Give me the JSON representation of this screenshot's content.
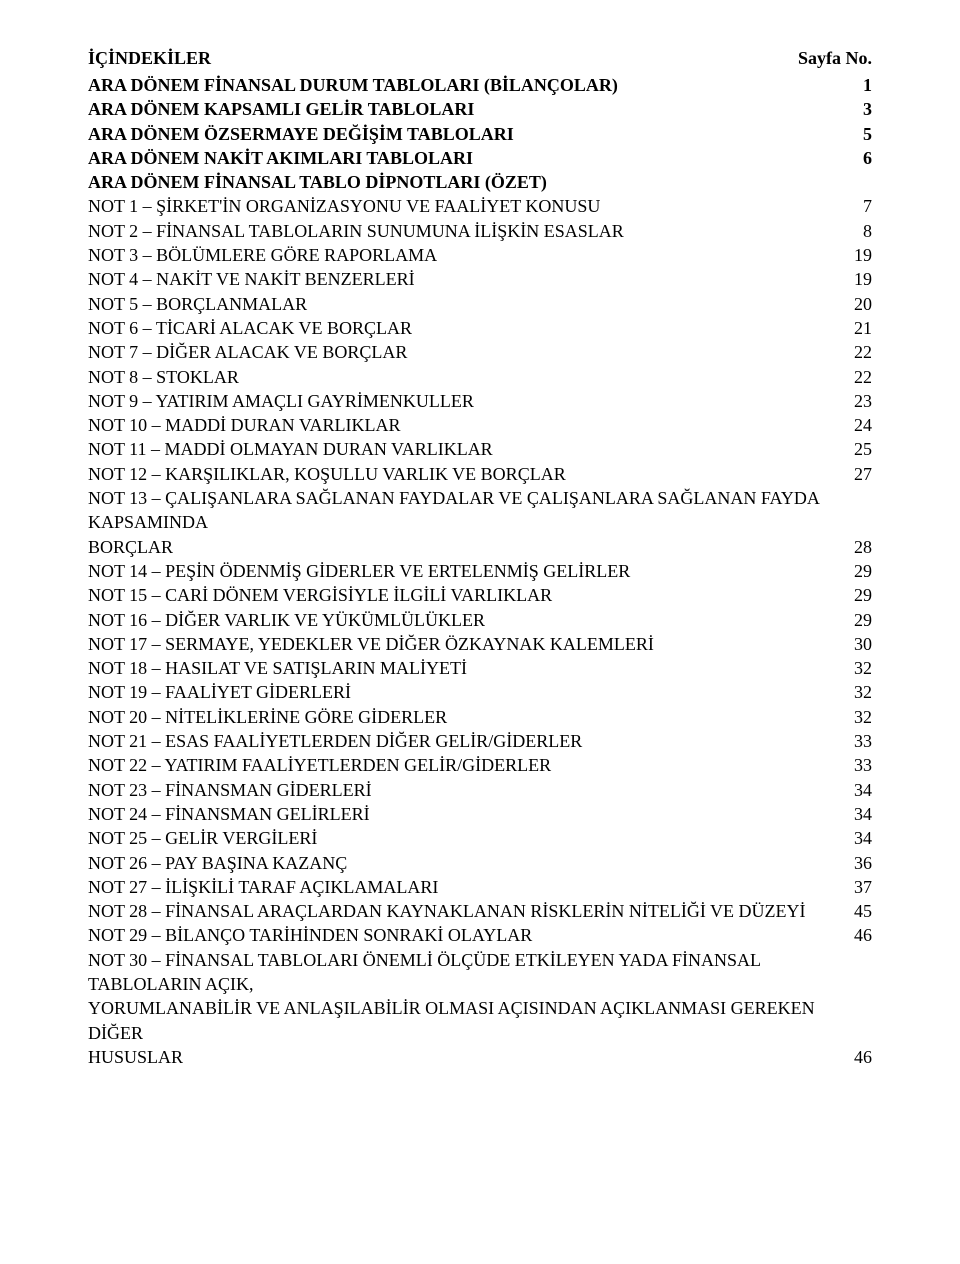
{
  "header": {
    "left": "İÇİNDEKİLER",
    "right": "Sayfa No."
  },
  "rows": [
    {
      "label": "ARA DÖNEM FİNANSAL DURUM TABLOLARI (BİLANÇOLAR)",
      "page": "1",
      "bold": true
    },
    {
      "label": "ARA DÖNEM KAPSAMLI GELİR TABLOLARI",
      "page": "3",
      "bold": true
    },
    {
      "label": "ARA DÖNEM ÖZSERMAYE DEĞİŞİM TABLOLARI",
      "page": "5",
      "bold": true
    },
    {
      "label": "ARA DÖNEM NAKİT AKIMLARI TABLOLARI",
      "page": "6",
      "bold": true
    },
    {
      "label": "ARA DÖNEM FİNANSAL TABLO DİPNOTLARI (ÖZET)",
      "page": "",
      "bold": true
    },
    {
      "label": "NOT 1 – ŞİRKET'İN ORGANİZASYONU VE FAALİYET KONUSU",
      "page": "7",
      "bold": false
    },
    {
      "label": "NOT 2 – FİNANSAL TABLOLARIN SUNUMUNA İLİŞKİN ESASLAR",
      "page": "8",
      "bold": false
    },
    {
      "label": "NOT 3 – BÖLÜMLERE GÖRE RAPORLAMA",
      "page": "19",
      "bold": false
    },
    {
      "label": "NOT 4 – NAKİT VE NAKİT BENZERLERİ",
      "page": "19",
      "bold": false
    },
    {
      "label": "NOT 5 – BORÇLANMALAR",
      "page": "20",
      "bold": false
    },
    {
      "label": "NOT 6 – TİCARİ ALACAK VE BORÇLAR",
      "page": "21",
      "bold": false
    },
    {
      "label": "NOT 7 – DİĞER ALACAK VE BORÇLAR",
      "page": "22",
      "bold": false
    },
    {
      "label": "NOT 8 – STOKLAR",
      "page": "22",
      "bold": false
    },
    {
      "label": "NOT 9 – YATIRIM AMAÇLI GAYRİMENKULLER",
      "page": "23",
      "bold": false
    },
    {
      "label": "NOT 10 – MADDİ DURAN VARLIKLAR",
      "page": "24",
      "bold": false
    },
    {
      "label": "NOT 11 – MADDİ OLMAYAN DURAN VARLIKLAR",
      "page": "25",
      "bold": false
    },
    {
      "label": "NOT 12 – KARŞILIKLAR, KOŞULLU VARLIK VE BORÇLAR",
      "page": "27",
      "bold": false
    },
    {
      "label": "NOT 13 – ÇALIŞANLARA SAĞLANAN FAYDALAR VE ÇALIŞANLARA SAĞLANAN FAYDA KAPSAMINDA BORÇLAR",
      "page": "28",
      "bold": false,
      "wrap": [
        "NOT 13 – ÇALIŞANLARA SAĞLANAN FAYDALAR VE ÇALIŞANLARA SAĞLANAN FAYDA KAPSAMINDA",
        "BORÇLAR"
      ]
    },
    {
      "label": "NOT 14 – PEŞİN ÖDENMİŞ GİDERLER VE ERTELENMİŞ GELİRLER",
      "page": "29",
      "bold": false
    },
    {
      "label": "NOT 15 – CARİ DÖNEM VERGİSİYLE İLGİLİ VARLIKLAR",
      "page": "29",
      "bold": false
    },
    {
      "label": "NOT 16 – DİĞER VARLIK VE YÜKÜMLÜLÜKLER",
      "page": "29",
      "bold": false
    },
    {
      "label": "NOT 17 – SERMAYE, YEDEKLER VE DİĞER ÖZKAYNAK KALEMLERİ",
      "page": "30",
      "bold": false
    },
    {
      "label": "NOT 18 – HASILAT VE SATIŞLARIN MALİYETİ",
      "page": "32",
      "bold": false
    },
    {
      "label": "NOT 19 – FAALİYET GİDERLERİ",
      "page": "32",
      "bold": false
    },
    {
      "label": "NOT 20 – NİTELİKLERİNE GÖRE GİDERLER",
      "page": "32",
      "bold": false
    },
    {
      "label": "NOT 21 – ESAS FAALİYETLERDEN DİĞER GELİR/GİDERLER",
      "page": "33",
      "bold": false
    },
    {
      "label": "NOT 22 – YATIRIM FAALİYETLERDEN GELİR/GİDERLER",
      "page": "33",
      "bold": false
    },
    {
      "label": "NOT 23 – FİNANSMAN GİDERLERİ",
      "page": "34",
      "bold": false
    },
    {
      "label": "NOT 24 – FİNANSMAN GELİRLERİ",
      "page": "34",
      "bold": false
    },
    {
      "label": "NOT 25 – GELİR VERGİLERİ",
      "page": "34",
      "bold": false
    },
    {
      "label": "NOT 26 – PAY BAŞINA KAZANÇ",
      "page": "36",
      "bold": false
    },
    {
      "label": "NOT 27 – İLİŞKİLİ TARAF  AÇIKLAMALARI",
      "page": "37",
      "bold": false
    },
    {
      "label": "NOT 28 – FİNANSAL ARAÇLARDAN KAYNAKLANAN RİSKLERİN NİTELİĞİ VE DÜZEYİ",
      "page": "45",
      "bold": false
    },
    {
      "label": "NOT 29 – BİLANÇO TARİHİNDEN SONRAKİ OLAYLAR",
      "page": "46",
      "bold": false
    },
    {
      "label": "NOT 30 – FİNANSAL TABLOLARI ÖNEMLİ ÖLÇÜDE ETKİLEYEN YADA FİNANSAL TABLOLARIN AÇIK, YORUMLANABİLİR VE ANLAŞILABİLİR OLMASI AÇISINDAN AÇIKLANMASI GEREKEN DİĞER HUSUSLAR",
      "page": "46",
      "bold": false,
      "wrap": [
        "NOT 30 – FİNANSAL TABLOLARI ÖNEMLİ ÖLÇÜDE ETKİLEYEN YADA FİNANSAL TABLOLARIN AÇIK,",
        "YORUMLANABİLİR VE ANLAŞILABİLİR OLMASI AÇISINDAN AÇIKLANMASI GEREKEN DİĞER",
        "HUSUSLAR"
      ]
    }
  ]
}
